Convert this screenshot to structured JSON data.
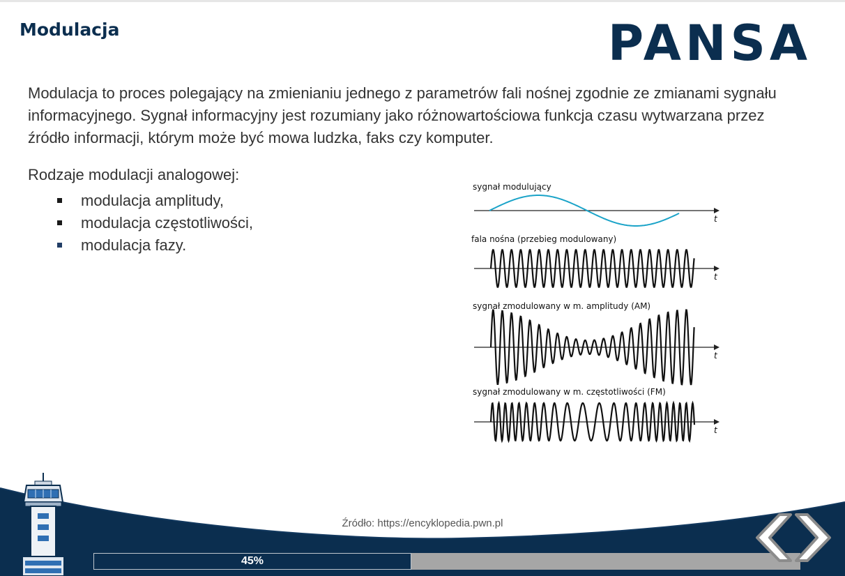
{
  "slide": {
    "title": "Modulacja",
    "logo_text": "PANSA",
    "intro": "Modulacja to proces polegający na zmienianiu jednego z parametrów fali nośnej zgodnie ze zmianami sygnału informacyjnego. Sygnał informacyjny jest rozumiany jako różnowartościowa funkcja czasu wytwarzana przez źródło informacji, którym może być mowa ludzka, faks czy komputer.",
    "types_heading": "Rodzaje modulacji analogowej:",
    "types": [
      "modulacja amplitudy,",
      "modulacja częstotliwości,",
      "modulacja fazy."
    ]
  },
  "figure": {
    "panels": [
      {
        "label": "sygnał modulujący",
        "axis_label": "t"
      },
      {
        "label": "fala nośna (przebieg modulowany)",
        "axis_label": "t"
      },
      {
        "label": "sygnał zmodulowany w m. amplitudy (AM)",
        "axis_label": "t"
      },
      {
        "label": "sygnał zmodulowany w m. częstotliwości (FM)",
        "axis_label": "t"
      }
    ]
  },
  "footer": {
    "source": "Źródło: https://encyklopedia.pwn.pl",
    "progress_label": "45%",
    "progress_value": 0.45
  },
  "icons": {
    "prev": "chevron-left-icon",
    "next": "chevron-right-icon",
    "tower": "control-tower-icon"
  },
  "colors": {
    "brand_navy": "#0b2e4f",
    "modulating_signal": "#1aa3c8",
    "progress_track": "#a6a6a6"
  }
}
